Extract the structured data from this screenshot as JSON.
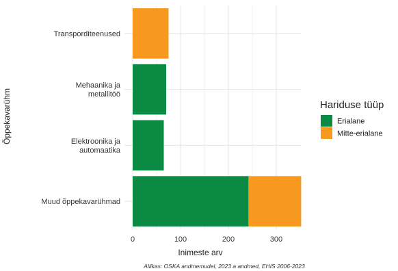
{
  "chart_data": {
    "type": "bar",
    "orientation": "horizontal",
    "stacked": true,
    "categories": [
      "Transporditeenused",
      "Mehaanika ja metallitöö",
      "Elektroonika ja automaatika",
      "Muud õppekavarühmad"
    ],
    "category_lines": [
      [
        "Transporditeenused"
      ],
      [
        "Mehaanika ja",
        "metallitöö"
      ],
      [
        "Elektroonika ja",
        "automaatika"
      ],
      [
        "Muud õppekavarühmad"
      ]
    ],
    "series": [
      {
        "name": "Erialane",
        "color": "#0a8a43",
        "values": [
          0,
          70,
          65,
          242
        ]
      },
      {
        "name": "Mitte-erialane",
        "color": "#f7991f",
        "values": [
          75,
          0,
          0,
          110
        ]
      }
    ],
    "xlabel": "Inimeste arv",
    "ylabel": "Õppekavarühm",
    "xlim": [
      0,
      355
    ],
    "xticks": [
      0,
      100,
      200,
      300
    ],
    "legend": {
      "title": "Hariduse tüüp",
      "position": "right"
    },
    "grid": true,
    "caption": "Allikas: OSKA andmemudel, 2023 a andmed, EHIS 2006-2023"
  }
}
